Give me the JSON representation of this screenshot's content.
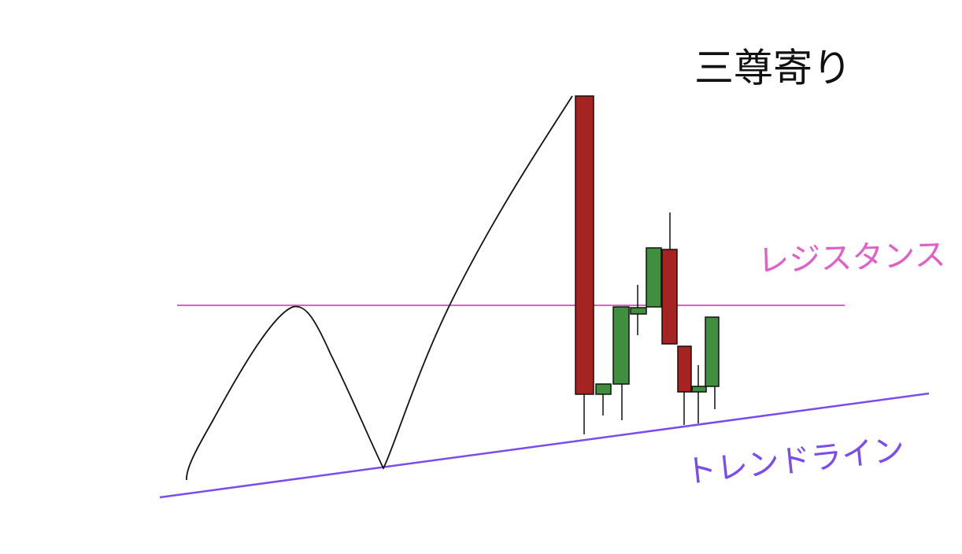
{
  "title": "三尊寄り",
  "labels": {
    "resistance": "レジスタンス",
    "trendline": "トレンドライン"
  }
}
